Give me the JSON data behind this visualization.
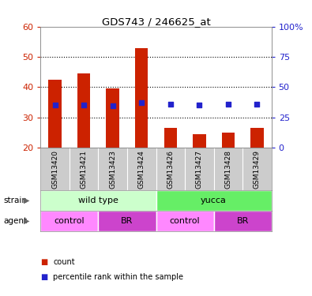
{
  "title": "GDS743 / 246625_at",
  "samples": [
    "GSM13420",
    "GSM13421",
    "GSM13423",
    "GSM13424",
    "GSM13426",
    "GSM13427",
    "GSM13428",
    "GSM13429"
  ],
  "counts": [
    42.5,
    44.5,
    39.5,
    53.0,
    26.5,
    24.5,
    25.0,
    26.5
  ],
  "percentile_ranks": [
    35.5,
    35.5,
    34.5,
    37.0,
    36.0,
    35.5,
    36.0,
    36.0
  ],
  "bar_color": "#cc2200",
  "dot_color": "#2222cc",
  "ylim_left": [
    20,
    60
  ],
  "ylim_right": [
    0,
    100
  ],
  "yticks_left": [
    20,
    30,
    40,
    50,
    60
  ],
  "yticks_right": [
    0,
    25,
    50,
    75,
    100
  ],
  "yticklabels_right": [
    "0",
    "25",
    "50",
    "75",
    "100%"
  ],
  "strain_groups": [
    {
      "label": "wild type",
      "cols": [
        0,
        1,
        2,
        3
      ],
      "color": "#ccffcc"
    },
    {
      "label": "yucca",
      "cols": [
        4,
        5,
        6,
        7
      ],
      "color": "#66ee66"
    }
  ],
  "agent_groups": [
    {
      "label": "control",
      "cols": [
        0,
        1
      ],
      "color": "#ff88ff"
    },
    {
      "label": "BR",
      "cols": [
        2,
        3
      ],
      "color": "#cc44cc"
    },
    {
      "label": "control",
      "cols": [
        4,
        5
      ],
      "color": "#ff88ff"
    },
    {
      "label": "BR",
      "cols": [
        6,
        7
      ],
      "color": "#cc44cc"
    }
  ],
  "legend_count_label": "count",
  "legend_pct_label": "percentile rank within the sample",
  "left_tick_color": "#cc2200",
  "right_tick_color": "#2222cc",
  "xtick_bg_color": "#cccccc",
  "strain_label_color": "#000000",
  "agent_label_color": "#000000"
}
